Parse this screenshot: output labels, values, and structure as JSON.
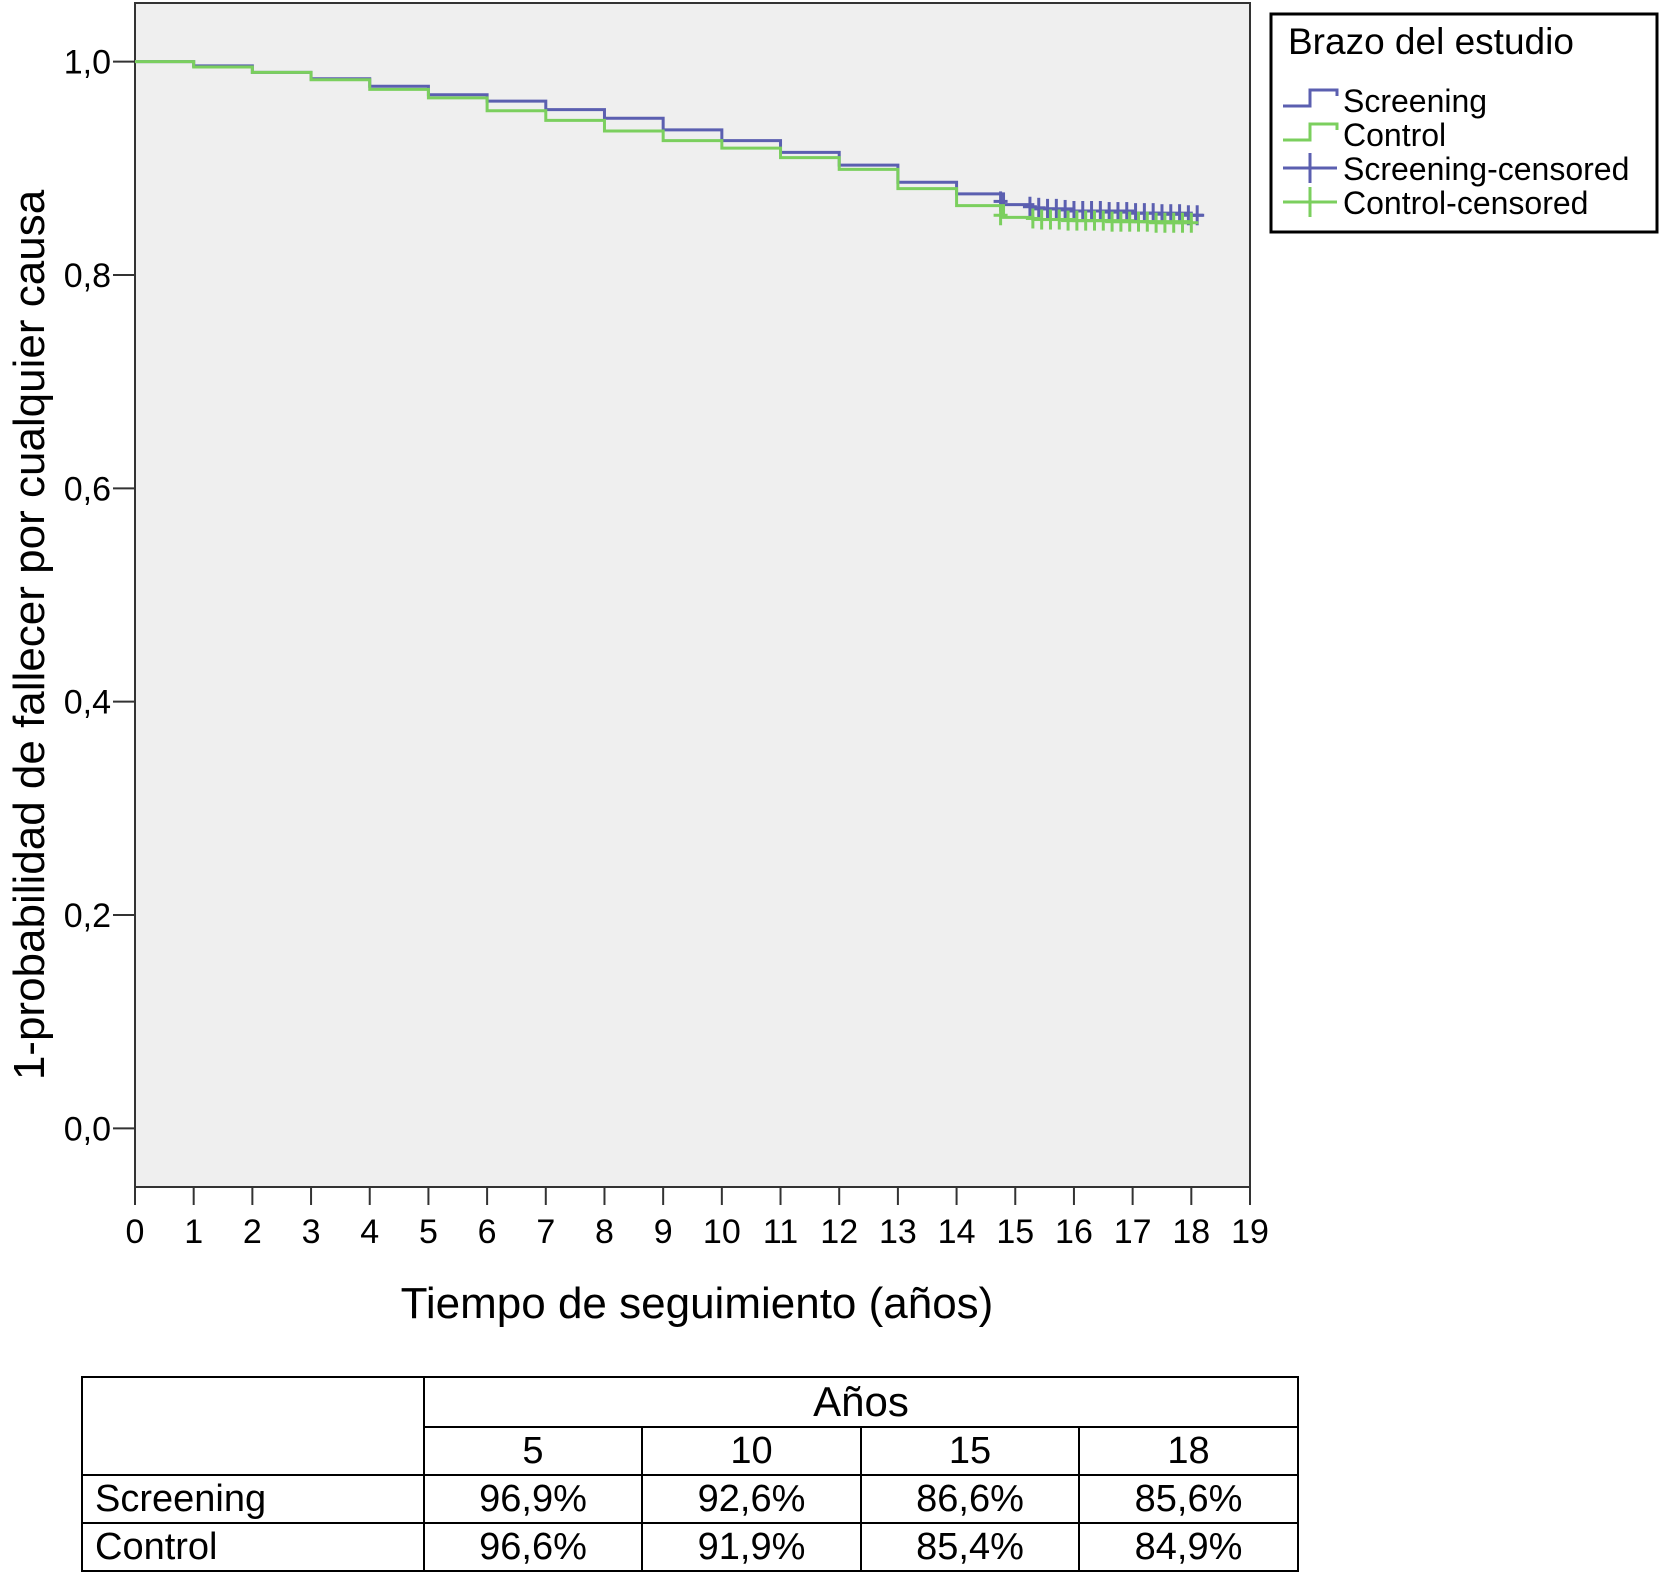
{
  "chart_data": {
    "type": "line",
    "xlabel": "Tiempo de seguimiento (años)",
    "ylabel": "1-probabilidad de fallecer por cualquier causa",
    "xlim": [
      0,
      19
    ],
    "ylim": [
      -0.055,
      1.055
    ],
    "x_ticks": [
      "0",
      "1",
      "2",
      "3",
      "4",
      "5",
      "6",
      "7",
      "8",
      "9",
      "10",
      "11",
      "12",
      "13",
      "14",
      "15",
      "16",
      "17",
      "18",
      "19"
    ],
    "y_ticks": [
      {
        "value": 0.0,
        "label": "0,0"
      },
      {
        "value": 0.2,
        "label": "0,2"
      },
      {
        "value": 0.4,
        "label": "0,4"
      },
      {
        "value": 0.6,
        "label": "0,6"
      },
      {
        "value": 0.8,
        "label": "0,8"
      },
      {
        "value": 1.0,
        "label": "1,0"
      }
    ],
    "grid": false,
    "plot_background": "#efefef",
    "legend": {
      "title": "Brazo del estudio",
      "position": "right-top",
      "entries": [
        {
          "label": "Screening",
          "symbol": "step",
          "color": "#5b5fb0"
        },
        {
          "label": "Control",
          "symbol": "step",
          "color": "#7bcf5e"
        },
        {
          "label": "Screening-censored",
          "symbol": "cross",
          "color": "#5b5fb0"
        },
        {
          "label": "Control-censored",
          "symbol": "cross",
          "color": "#7bcf5e"
        }
      ]
    },
    "series": [
      {
        "name": "Screening",
        "color": "#5b5fb0",
        "x": [
          0,
          1,
          2,
          3,
          4,
          5,
          6,
          7,
          8,
          9,
          10,
          11,
          12,
          13,
          14,
          14.8,
          15.3,
          16,
          17,
          18,
          18.2
        ],
        "y": [
          1.0,
          0.996,
          0.99,
          0.984,
          0.977,
          0.969,
          0.963,
          0.955,
          0.947,
          0.936,
          0.926,
          0.915,
          0.903,
          0.887,
          0.876,
          0.866,
          0.862,
          0.86,
          0.858,
          0.856,
          0.856
        ],
        "censored": {
          "x": [
            14.75,
            15.25,
            15.4,
            15.55,
            15.7,
            15.85,
            16.0,
            16.15,
            16.3,
            16.45,
            16.6,
            16.75,
            16.9,
            17.05,
            17.2,
            17.35,
            17.5,
            17.65,
            17.8,
            17.95,
            18.1
          ],
          "y": [
            0.869,
            0.864,
            0.863,
            0.862,
            0.862,
            0.861,
            0.86,
            0.86,
            0.86,
            0.86,
            0.859,
            0.859,
            0.859,
            0.858,
            0.858,
            0.858,
            0.857,
            0.857,
            0.857,
            0.856,
            0.856
          ]
        }
      },
      {
        "name": "Control",
        "color": "#7bcf5e",
        "x": [
          0,
          1,
          2,
          3,
          4,
          5,
          6,
          7,
          8,
          9,
          10,
          11,
          12,
          13,
          14,
          14.8,
          15.3,
          16,
          17,
          18
        ],
        "y": [
          1.0,
          0.995,
          0.99,
          0.983,
          0.974,
          0.966,
          0.954,
          0.945,
          0.935,
          0.926,
          0.919,
          0.91,
          0.899,
          0.881,
          0.865,
          0.854,
          0.852,
          0.851,
          0.85,
          0.849
        ],
        "censored": {
          "x": [
            14.75,
            15.3,
            15.45,
            15.6,
            15.75,
            15.9,
            16.05,
            16.2,
            16.35,
            16.5,
            16.65,
            16.8,
            16.95,
            17.1,
            17.25,
            17.4,
            17.55,
            17.7,
            17.85,
            18.0
          ],
          "y": [
            0.856,
            0.853,
            0.852,
            0.852,
            0.852,
            0.851,
            0.851,
            0.851,
            0.851,
            0.851,
            0.85,
            0.85,
            0.85,
            0.85,
            0.85,
            0.849,
            0.849,
            0.849,
            0.849,
            0.849
          ]
        }
      }
    ]
  },
  "table": {
    "years_header": "Años",
    "columns": [
      "5",
      "10",
      "15",
      "18"
    ],
    "rows": [
      {
        "label": "Screening",
        "values": [
          "96,9%",
          "92,6%",
          "86,6%",
          "85,6%"
        ]
      },
      {
        "label": "Control",
        "values": [
          "96,6%",
          "91,9%",
          "85,4%",
          "84,9%"
        ]
      }
    ]
  }
}
